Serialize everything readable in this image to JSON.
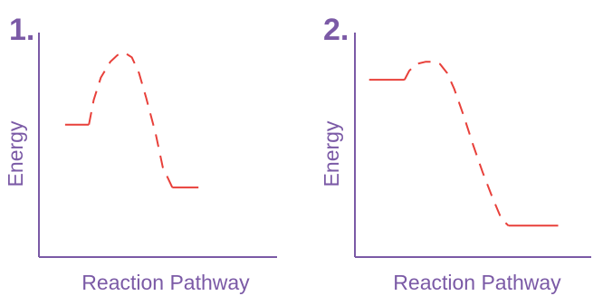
{
  "colors": {
    "axis": "#7b5aa6",
    "label": "#7b5aa6",
    "curve": "#e8403a"
  },
  "chart_data": [
    {
      "type": "line",
      "panel_label": "1.",
      "xlabel": "Reaction Pathway",
      "ylabel": "Energy",
      "x_ticks": false,
      "y_ticks": false,
      "grid": false,
      "xlim": [
        0,
        100
      ],
      "ylim": [
        0,
        100
      ],
      "reactants": {
        "x_start": 11,
        "x_end": 21,
        "energy": 59
      },
      "transition_state": {
        "x": 36,
        "energy": 91
      },
      "products": {
        "x_start": 56,
        "x_end": 67,
        "energy": 31
      },
      "x": [
        11,
        21,
        23,
        26,
        30,
        33,
        36,
        39,
        42,
        45,
        49,
        52,
        56,
        67
      ],
      "y": [
        59,
        59,
        70,
        80,
        87,
        90,
        91,
        89,
        82,
        71,
        55,
        40,
        31,
        31
      ],
      "line_styles": [
        "solid",
        "dashed",
        "solid"
      ]
    },
    {
      "type": "line",
      "panel_label": "2.",
      "xlabel": "Reaction Pathway",
      "ylabel": "Energy",
      "x_ticks": false,
      "y_ticks": false,
      "grid": false,
      "xlim": [
        0,
        100
      ],
      "ylim": [
        0,
        100
      ],
      "reactants": {
        "x_start": 6,
        "x_end": 21,
        "energy": 79
      },
      "transition_state": {
        "x": 33,
        "energy": 87
      },
      "products": {
        "x_start": 65,
        "x_end": 86,
        "energy": 14
      },
      "x": [
        6,
        21,
        23,
        26,
        30,
        33,
        36,
        39,
        42,
        46,
        50,
        54,
        58,
        62,
        65,
        86
      ],
      "y": [
        79,
        79,
        83,
        86,
        87,
        87,
        86,
        82,
        75,
        63,
        50,
        38,
        27,
        17,
        14,
        14
      ],
      "line_styles": [
        "solid",
        "dashed",
        "solid"
      ]
    }
  ]
}
